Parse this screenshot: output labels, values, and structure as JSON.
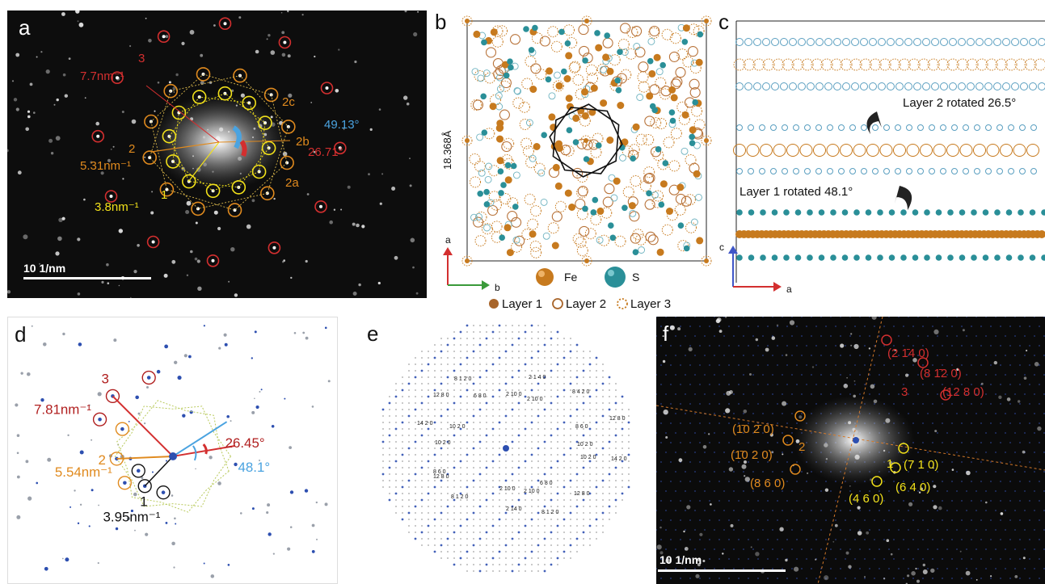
{
  "colors": {
    "red": "#d32f2f",
    "orange": "#e08a1e",
    "yellow": "#f2e11a",
    "blue": "#4aa3e0",
    "black": "#111111",
    "teal": "#2a8f98",
    "fe": "#c77a1e",
    "lattice_blue": "#2d4fb0"
  },
  "panel_a": {
    "label": "a",
    "ring3_label": "3",
    "ring3_dist": "7.7nm⁻¹",
    "ring2_label": "2",
    "ring2_dist": "5.31nm⁻¹",
    "ring1_label": "1",
    "ring1_dist": "3.8nm⁻¹",
    "spot_2a": "2a",
    "spot_2b": "2b",
    "spot_2c": "2c",
    "angle_blue": "49.13°",
    "angle_red": "26.71°",
    "scalebar": "10 1/nm"
  },
  "panel_b": {
    "label": "b",
    "dimension": "18.368Å",
    "axis_a": "a",
    "axis_b": "b",
    "legend_fe": "Fe",
    "legend_s": "S",
    "legend_layer1": "Layer 1",
    "legend_layer2": "Layer 2",
    "legend_layer3": "Layer 3"
  },
  "panel_c": {
    "label": "c",
    "layer2_text": "Layer 2 rotated 26.5°",
    "layer1_text": "Layer 1 rotated 48.1°",
    "axis_c": "c",
    "axis_a": "a"
  },
  "panel_d": {
    "label": "d",
    "ring3_label": "3",
    "ring3_dist": "7.81nm⁻¹",
    "ring2_label": "2",
    "ring2_dist": "5.54nm⁻¹",
    "ring1_label": "1",
    "ring1_dist": "3.95nm⁻¹",
    "angle_red": "26.45°",
    "angle_blue": "48.1°"
  },
  "panel_e": {
    "label": "e",
    "indices": [
      "8 1 2 0",
      "2 1 4 0",
      "12 8 0",
      "6 8 0",
      "2 10 0",
      "2 10 0",
      "8 4 2 0",
      "14 2 0",
      "10 2 0",
      "8 6 0",
      "12 8 0",
      "10 2 0",
      "10 2 0",
      "10 2 0",
      "14 2 0",
      "12 8 0",
      "8 6 0",
      "8 1 2 0",
      "2 10 0",
      "2 10 0",
      "6 8 0",
      "12 8 0",
      "2 14 0",
      "8 1 2 0"
    ]
  },
  "panel_f": {
    "label": "f",
    "red_1": "(2 1̄4 0)",
    "red_2": "(8 1̄2 0)",
    "red_3": "(12 8 0)",
    "red_ring": "3",
    "or_1": "(1̄0 2̄ 0)",
    "or_2": "(1̄0 2 0)",
    "or_3": "(8 6 0)",
    "or_ring": "2",
    "ye_ring": "1",
    "ye_1": "(7 1 0)",
    "ye_2": "(6 4 0)",
    "ye_3": "(4 6 0)",
    "scalebar": "10 1/nm"
  }
}
